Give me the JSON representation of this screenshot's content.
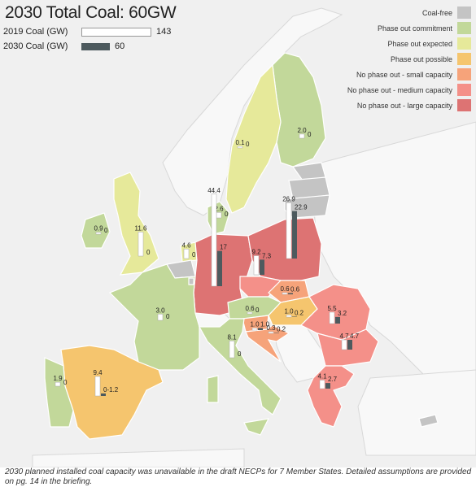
{
  "title": "2030 Total Coal: 60GW",
  "key": {
    "row2019_label": "2019 Coal (GW)",
    "row2019_value": "143",
    "row2030_label": "2030 Coal (GW)",
    "row2030_value": "60"
  },
  "legend": {
    "items": [
      {
        "label": "Coal-free",
        "color": "#c4c4c4"
      },
      {
        "label": "Phase out commitment",
        "color": "#c2d89a"
      },
      {
        "label": "Phase out expected",
        "color": "#e6e99a"
      },
      {
        "label": "Phase out possible",
        "color": "#f5c56e"
      },
      {
        "label": "No phase out - small capacity",
        "color": "#f6a37a"
      },
      {
        "label": "No phase out - medium capacity",
        "color": "#f49089"
      },
      {
        "label": "No phase out - large capacity",
        "color": "#dd7373"
      }
    ]
  },
  "colors": {
    "sea": "#f0f0f0",
    "non_eu_land": "#f8f8f8",
    "border": "#ffffff",
    "bar_2019": "#ffffff",
    "bar_2030": "#4d5a5e"
  },
  "countries": [
    {
      "id": "finland",
      "name": "Finland",
      "category": "Phase out commitment",
      "v2019": "2.0",
      "v2030": "0"
    },
    {
      "id": "sweden",
      "name": "Sweden",
      "category": "Phase out expected",
      "v2019": "0.1",
      "v2030": "0"
    },
    {
      "id": "denmark",
      "name": "Denmark",
      "category": "Phase out commitment",
      "v2019": "2.6",
      "v2030": "0"
    },
    {
      "id": "ireland",
      "name": "Ireland",
      "category": "Phase out commitment",
      "v2019": "0.9",
      "v2030": "0"
    },
    {
      "id": "uk",
      "name": "United Kingdom",
      "category": "Phase out expected",
      "v2019": "11.6",
      "v2030": "0"
    },
    {
      "id": "netherlands",
      "name": "Netherlands",
      "category": "Phase out expected",
      "v2019": "4.6",
      "v2030": "0"
    },
    {
      "id": "germany",
      "name": "Germany",
      "category": "No phase out - large capacity",
      "v2019": "44.4",
      "v2030": "17"
    },
    {
      "id": "poland",
      "name": "Poland",
      "category": "No phase out - large capacity",
      "v2019": "26.9",
      "v2030": "22.9"
    },
    {
      "id": "czechia",
      "name": "Czechia",
      "category": "No phase out - medium capacity",
      "v2019": "9.2",
      "v2030": "7.3"
    },
    {
      "id": "slovakia",
      "name": "Slovakia",
      "category": "No phase out - small capacity",
      "v2019": "0.6",
      "v2030": "0.6"
    },
    {
      "id": "austria",
      "name": "Austria",
      "category": "Phase out commitment",
      "v2019": "0.6",
      "v2030": "0"
    },
    {
      "id": "hungary",
      "name": "Hungary",
      "category": "Phase out possible",
      "v2019": "1.0",
      "v2030": "0.2"
    },
    {
      "id": "slovenia",
      "name": "Slovenia",
      "category": "No phase out - small capacity",
      "v2019": "1.0",
      "v2030": "1.0"
    },
    {
      "id": "croatia",
      "name": "Croatia",
      "category": "No phase out - small capacity",
      "v2019": "0.3",
      "v2030": "0.2"
    },
    {
      "id": "france",
      "name": "France",
      "category": "Phase out commitment",
      "v2019": "3.0",
      "v2030": "0"
    },
    {
      "id": "italy",
      "name": "Italy",
      "category": "Phase out commitment",
      "v2019": "8.1",
      "v2030": "0"
    },
    {
      "id": "spain",
      "name": "Spain",
      "category": "Phase out possible",
      "v2019": "9.4",
      "v2030": "0-1.2"
    },
    {
      "id": "portugal",
      "name": "Portugal",
      "category": "Phase out commitment",
      "v2019": "1.9",
      "v2030": "0"
    },
    {
      "id": "romania",
      "name": "Romania",
      "category": "No phase out - medium capacity",
      "v2019": "5.5",
      "v2030": "3.2"
    },
    {
      "id": "bulgaria",
      "name": "Bulgaria",
      "category": "No phase out - medium capacity",
      "v2019": "4.7",
      "v2030": "4.7"
    },
    {
      "id": "greece",
      "name": "Greece",
      "category": "No phase out - medium capacity",
      "v2019": "4.1",
      "v2030": "2.7"
    }
  ],
  "footer": "2030 planned installed coal capacity was unavailable in the draft NECPs for 7 Member States. Detailed assumptions are provided on pg. 14 in the briefing."
}
